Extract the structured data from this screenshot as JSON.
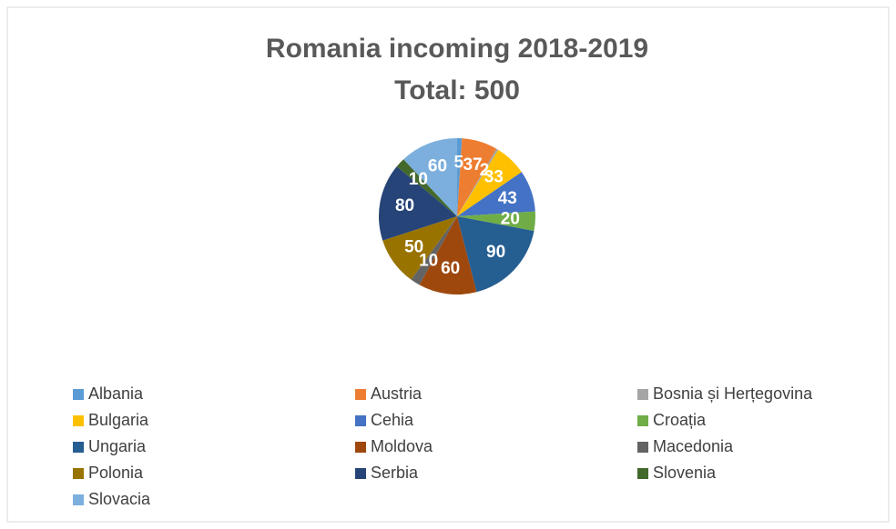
{
  "chart_data": {
    "type": "pie",
    "title": "Romania incoming 2018-2019",
    "subtitle": "Total: 500",
    "categories": [
      "Albania",
      "Austria",
      "Bosnia și Herțegovina",
      "Bulgaria",
      "Cehia",
      "Croația",
      "Ungaria",
      "Moldova",
      "Macedonia",
      "Polonia",
      "Serbia",
      "Slovenia",
      "Slovacia"
    ],
    "values": [
      5,
      37,
      2,
      33,
      43,
      20,
      90,
      60,
      10,
      50,
      80,
      10,
      60
    ],
    "colors": [
      "#5b9bd5",
      "#ed7d31",
      "#a5a5a5",
      "#ffc000",
      "#4472c4",
      "#70ad47",
      "#255e91",
      "#9e480e",
      "#636363",
      "#997300",
      "#264478",
      "#43682b",
      "#7cafdd"
    ],
    "legend": "bottom"
  }
}
